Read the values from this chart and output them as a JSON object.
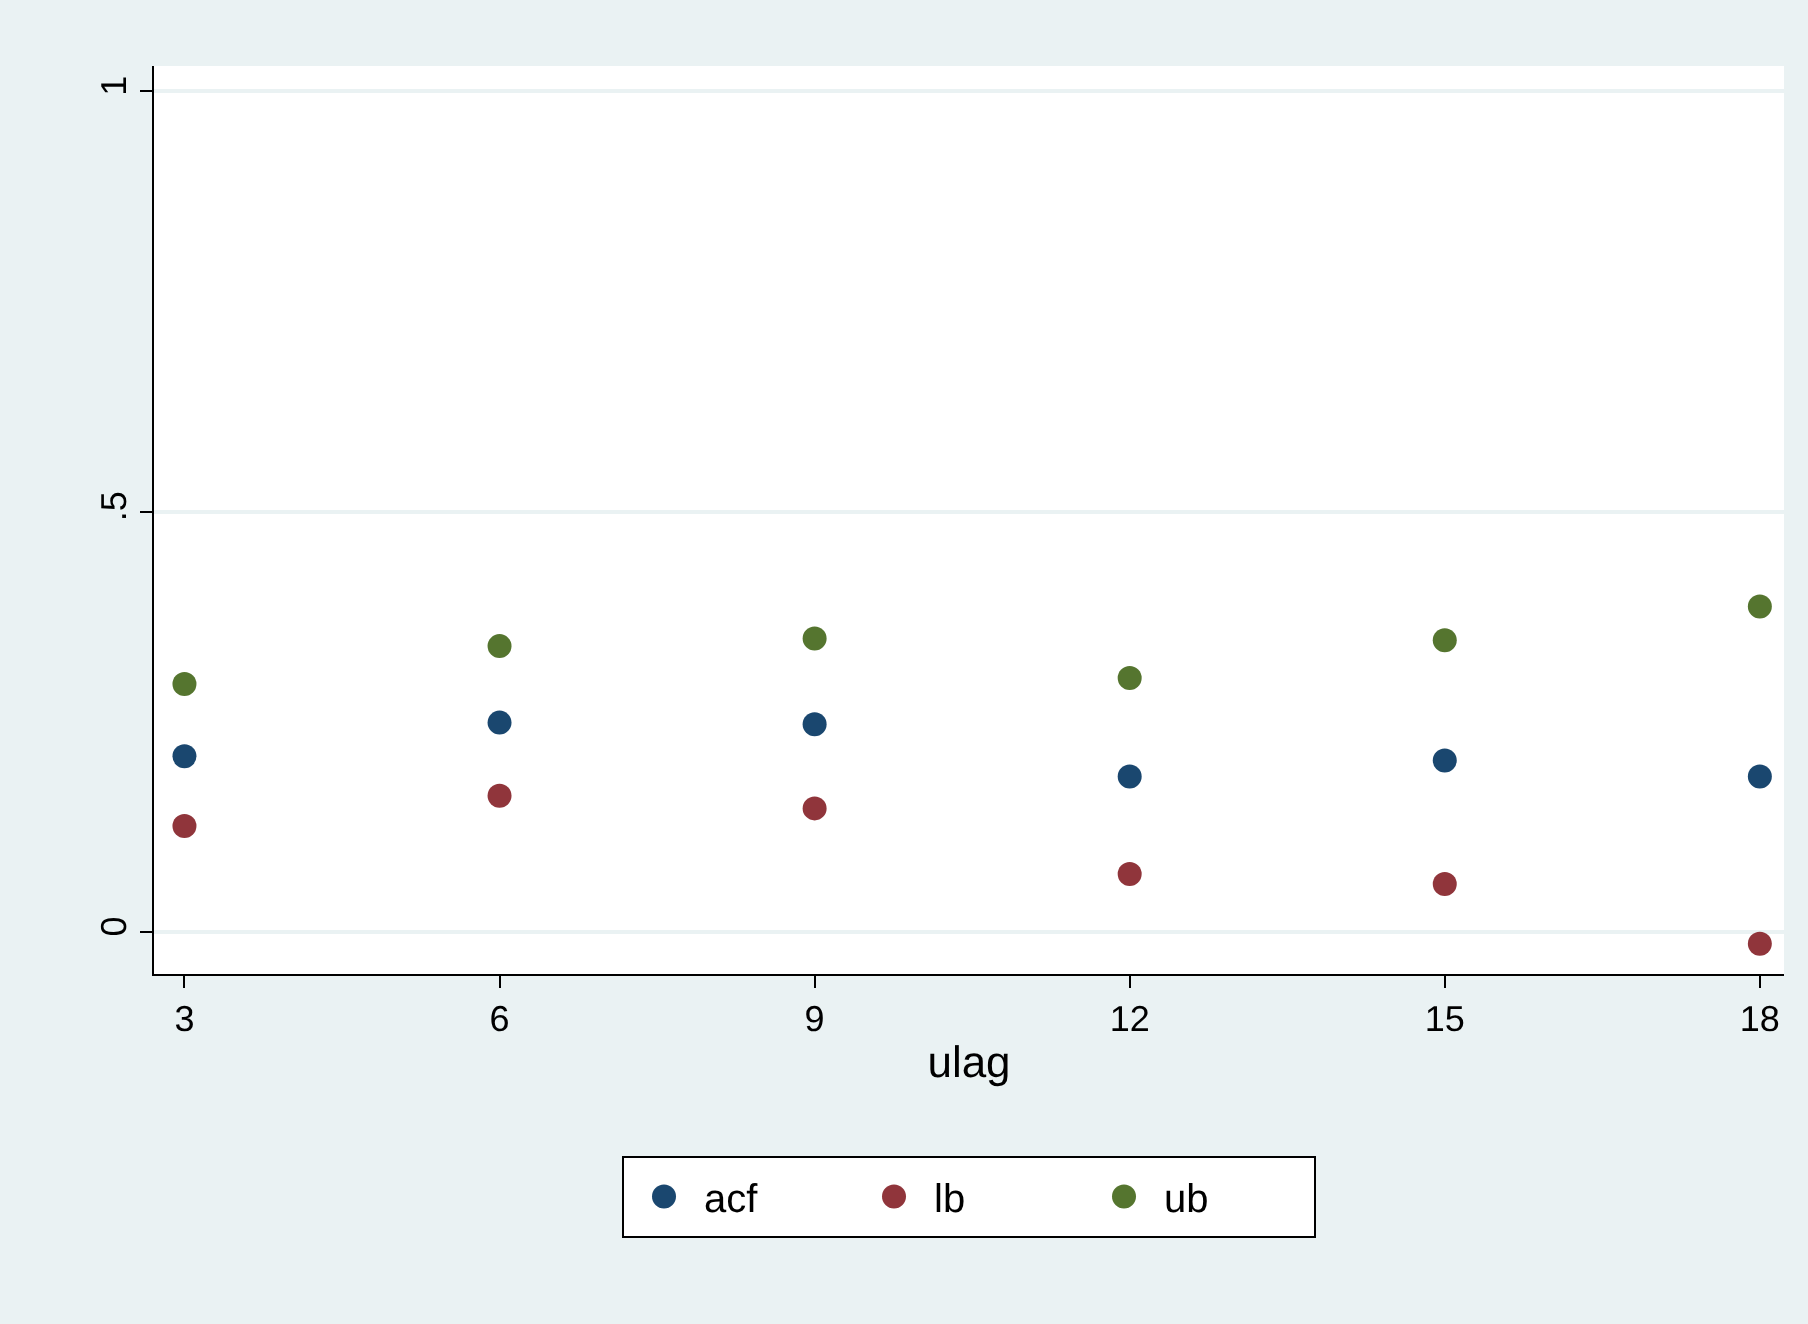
{
  "chart_data": {
    "type": "scatter",
    "xlabel": "ulag",
    "x": [
      3,
      6,
      9,
      12,
      15,
      18
    ],
    "series": [
      {
        "name": "acf",
        "color": "#1a476f",
        "values": [
          0.209,
          0.249,
          0.247,
          0.185,
          0.204,
          0.185
        ]
      },
      {
        "name": "lb",
        "color": "#90353b",
        "values": [
          0.126,
          0.162,
          0.147,
          0.069,
          0.057,
          -0.014
        ]
      },
      {
        "name": "ub",
        "color": "#55752f",
        "values": [
          0.295,
          0.34,
          0.349,
          0.302,
          0.347,
          0.387
        ]
      }
    ],
    "xlim": [
      2.71,
      18.23
    ],
    "xticks": [
      3,
      6,
      9,
      12,
      15,
      18
    ],
    "ylim": [
      -0.05,
      1.03
    ],
    "yticks": [
      {
        "value": 0,
        "label": "0"
      },
      {
        "value": 0.5,
        "label": ".5"
      },
      {
        "value": 1,
        "label": "1"
      }
    ],
    "grid": "y",
    "legend": "bottom",
    "marker": "circle"
  }
}
